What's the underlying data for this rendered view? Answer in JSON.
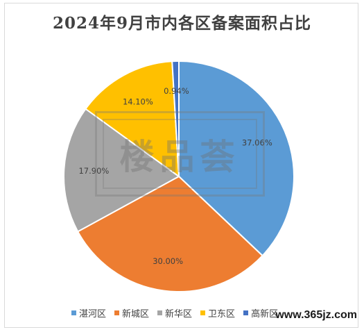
{
  "chart_data": {
    "type": "pie",
    "title": "2024年9月市内各区备案面积占比",
    "slices": [
      {
        "name": "湛河区",
        "value": 37.06,
        "label": "37.06%",
        "color": "#5b9bd5"
      },
      {
        "name": "新城区",
        "value": 30.0,
        "label": "30.00%",
        "color": "#ed7d31"
      },
      {
        "name": "新华区",
        "value": 17.9,
        "label": "17.90%",
        "color": "#a5a5a5"
      },
      {
        "name": "卫东区",
        "value": 14.1,
        "label": "14.10%",
        "color": "#ffc000"
      },
      {
        "name": "高新区",
        "value": 0.94,
        "label": "0.94%",
        "color": "#4472c4"
      }
    ],
    "legend_position": "bottom",
    "start_angle_deg": 0,
    "direction": "clockwise"
  },
  "watermark": {
    "text": "楼品荟"
  },
  "site_watermark": {
    "text": "www.365jz.com"
  }
}
